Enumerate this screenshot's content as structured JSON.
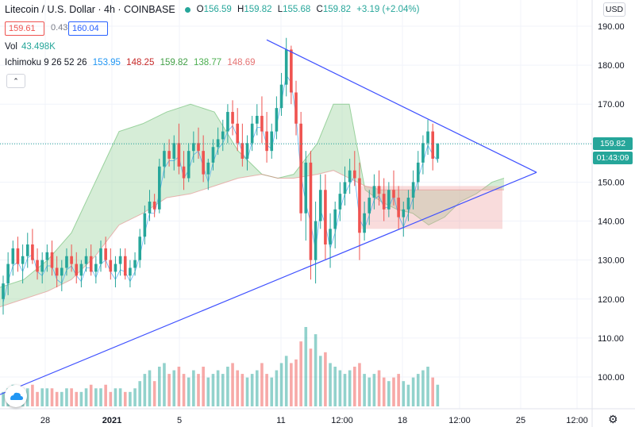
{
  "header": {
    "symbol": "Litecoin / U.S. Dollar · 4h · COINBASE",
    "o_label": "O",
    "o": "156.59",
    "h_label": "H",
    "h": "159.82",
    "l_label": "L",
    "l": "155.68",
    "c_label": "C",
    "c": "159.82",
    "change": "+3.19 (+2.04%)"
  },
  "quote": {
    "bid": "159.61",
    "spread": "0.43",
    "ask": "160.04"
  },
  "volume": {
    "label": "Vol",
    "value": "43.498K"
  },
  "ichimoku": {
    "label": "Ichimoku 9 26 52 26",
    "v1": "153.95",
    "v2": "148.25",
    "v3": "159.82",
    "v4": "138.77",
    "v5": "148.69",
    "colors": [
      "#2196f3",
      "#c62828",
      "#43a047",
      "#4caf50",
      "#e57373"
    ]
  },
  "currency": "USD",
  "last_price_label": "159.82",
  "countdown_label": "01:43:09",
  "colors": {
    "up": "#26a69a",
    "down": "#ef5350",
    "trendline": "#3f51ff",
    "cloud_bull": "#a5d6a7",
    "cloud_bear": "#ef9a9a"
  },
  "chart_data": {
    "type": "candlestick",
    "title": "Litecoin / U.S. Dollar · 4h · COINBASE",
    "y_ticks": [
      190,
      180,
      170,
      160,
      150,
      140,
      130,
      120,
      110,
      100
    ],
    "ylim": [
      94,
      193
    ],
    "x_ticks": [
      "28",
      "2021",
      "5",
      "11",
      "12:00",
      "18",
      "12:00",
      "25",
      "12:00"
    ],
    "grid": true,
    "candles_ohlc": [
      [
        120,
        126,
        116,
        124
      ],
      [
        124,
        132,
        121,
        129
      ],
      [
        129,
        135,
        126,
        133
      ],
      [
        133,
        136,
        127,
        129
      ],
      [
        129,
        134,
        124,
        131
      ],
      [
        131,
        137,
        128,
        134
      ],
      [
        134,
        138,
        129,
        130
      ],
      [
        130,
        133,
        125,
        127
      ],
      [
        127,
        132,
        124,
        130
      ],
      [
        130,
        134,
        127,
        132
      ],
      [
        132,
        135,
        126,
        128
      ],
      [
        128,
        131,
        123,
        126
      ],
      [
        126,
        130,
        122,
        128
      ],
      [
        128,
        133,
        126,
        131
      ],
      [
        131,
        134,
        127,
        129
      ],
      [
        129,
        132,
        124,
        126
      ],
      [
        126,
        130,
        123,
        129
      ],
      [
        129,
        133,
        127,
        131
      ],
      [
        131,
        134,
        126,
        127
      ],
      [
        127,
        131,
        124,
        129
      ],
      [
        129,
        135,
        127,
        133
      ],
      [
        133,
        136,
        128,
        130
      ],
      [
        130,
        133,
        125,
        127
      ],
      [
        127,
        131,
        123,
        129
      ],
      [
        129,
        133,
        126,
        131
      ],
      [
        131,
        133,
        125,
        126
      ],
      [
        126,
        130,
        123,
        128
      ],
      [
        128,
        132,
        126,
        130
      ],
      [
        130,
        138,
        128,
        136
      ],
      [
        136,
        144,
        134,
        142
      ],
      [
        142,
        148,
        140,
        145
      ],
      [
        145,
        147,
        141,
        143
      ],
      [
        143,
        156,
        142,
        154
      ],
      [
        154,
        160,
        151,
        158
      ],
      [
        158,
        161,
        154,
        156
      ],
      [
        156,
        162,
        153,
        160
      ],
      [
        160,
        165,
        152,
        154
      ],
      [
        154,
        158,
        148,
        151
      ],
      [
        151,
        160,
        150,
        158
      ],
      [
        158,
        163,
        155,
        160
      ],
      [
        160,
        164,
        156,
        158
      ],
      [
        158,
        162,
        150,
        152
      ],
      [
        152,
        156,
        148,
        155
      ],
      [
        155,
        161,
        153,
        159
      ],
      [
        159,
        164,
        157,
        161
      ],
      [
        161,
        166,
        158,
        163
      ],
      [
        163,
        170,
        160,
        168
      ],
      [
        168,
        171,
        162,
        165
      ],
      [
        165,
        169,
        158,
        160
      ],
      [
        160,
        165,
        154,
        156
      ],
      [
        156,
        162,
        153,
        160
      ],
      [
        160,
        167,
        158,
        165
      ],
      [
        165,
        170,
        162,
        167
      ],
      [
        167,
        172,
        160,
        163
      ],
      [
        163,
        168,
        155,
        158
      ],
      [
        158,
        165,
        156,
        163
      ],
      [
        163,
        172,
        161,
        169
      ],
      [
        169,
        178,
        167,
        175
      ],
      [
        175,
        187,
        172,
        184
      ],
      [
        184,
        185,
        170,
        173
      ],
      [
        173,
        176,
        162,
        165
      ],
      [
        165,
        168,
        140,
        142
      ],
      [
        142,
        158,
        135,
        155
      ],
      [
        155,
        158,
        125,
        130
      ],
      [
        130,
        145,
        124,
        140
      ],
      [
        140,
        152,
        138,
        148
      ],
      [
        148,
        152,
        130,
        134
      ],
      [
        134,
        142,
        128,
        138
      ],
      [
        138,
        145,
        133,
        143
      ],
      [
        143,
        150,
        140,
        147
      ],
      [
        147,
        154,
        144,
        150
      ],
      [
        150,
        156,
        147,
        153
      ],
      [
        153,
        158,
        149,
        151
      ],
      [
        151,
        155,
        130,
        137
      ],
      [
        137,
        145,
        135,
        142
      ],
      [
        142,
        148,
        139,
        146
      ],
      [
        146,
        152,
        143,
        149
      ],
      [
        149,
        153,
        144,
        147
      ],
      [
        147,
        151,
        140,
        143
      ],
      [
        143,
        150,
        141,
        148
      ],
      [
        148,
        153,
        144,
        146
      ],
      [
        146,
        149,
        138,
        141
      ],
      [
        141,
        145,
        136,
        143
      ],
      [
        143,
        148,
        140,
        146
      ],
      [
        146,
        153,
        143,
        150
      ],
      [
        150,
        158,
        148,
        155
      ],
      [
        155,
        162,
        152,
        160
      ],
      [
        160,
        166,
        157,
        163
      ],
      [
        163,
        165,
        153,
        156
      ],
      [
        156,
        160,
        155,
        159.82
      ]
    ],
    "volumes": [
      4,
      5,
      6,
      4,
      5,
      5,
      6,
      4,
      5,
      5,
      5,
      4,
      4,
      5,
      5,
      4,
      4,
      5,
      6,
      5,
      5,
      6,
      4,
      5,
      5,
      4,
      4,
      5,
      7,
      9,
      10,
      7,
      11,
      12,
      9,
      10,
      11,
      9,
      8,
      10,
      9,
      11,
      8,
      9,
      10,
      9,
      11,
      12,
      10,
      9,
      8,
      9,
      10,
      12,
      9,
      8,
      10,
      12,
      14,
      12,
      13,
      18,
      22,
      16,
      20,
      14,
      15,
      12,
      11,
      10,
      9,
      10,
      11,
      12,
      9,
      8,
      9,
      10,
      8,
      7,
      8,
      9,
      7,
      6,
      8,
      9,
      10,
      11,
      8,
      6
    ],
    "trendline_upper": [
      [
        184.5,
        186.5
      ],
      [
        62,
        152.5
      ]
    ],
    "trendline_lower": [
      [
        0,
        95.5
      ],
      [
        62,
        152.5
      ]
    ]
  }
}
